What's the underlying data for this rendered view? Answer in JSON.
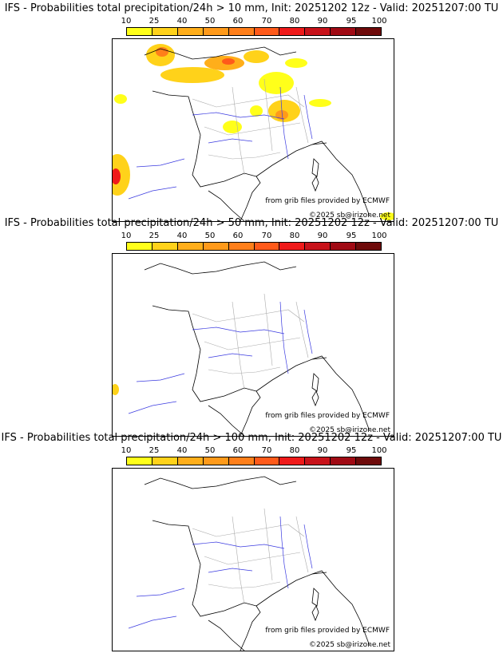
{
  "colorbar": {
    "labels": [
      "10",
      "25",
      "40",
      "50",
      "60",
      "70",
      "80",
      "90",
      "95",
      "100"
    ],
    "colors": [
      "#ffff1a",
      "#ffd21a",
      "#ffae1a",
      "#ff9a1a",
      "#ff7f1a",
      "#ff5a1a",
      "#ef1a1a",
      "#c8121a",
      "#a00a14",
      "#6e0a0a"
    ]
  },
  "panels": [
    {
      "title": "IFS - Probabilities total precipitation/24h > 10 mm, Init: 20251202 12z - Valid: 20251207:00 TU"
    },
    {
      "title": "IFS - Probabilities total precipitation/24h > 50 mm, Init: 20251202 12z - Valid: 20251207:00 TU"
    },
    {
      "title": "IFS - Probabilities total precipitation/24h > 100 mm, Init: 20251202 12z - Valid: 20251207:00 TU"
    }
  ],
  "credits": {
    "grib": "from grib files provided by ECMWF",
    "copyright": "©2025 sb@irizone.net"
  }
}
